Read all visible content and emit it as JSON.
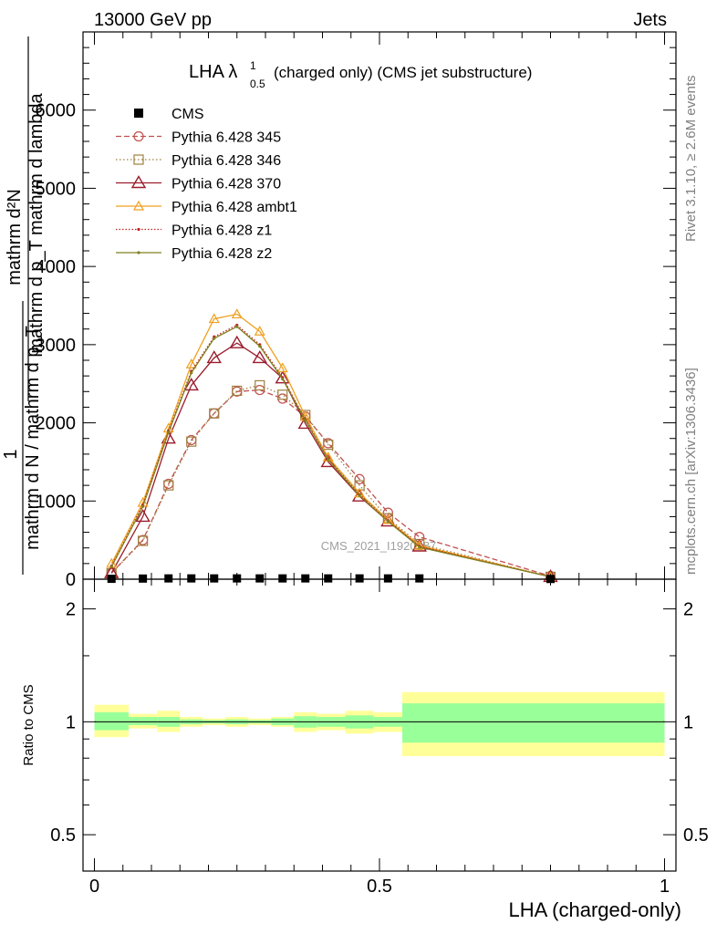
{
  "header": {
    "left": "13000 GeV pp",
    "right": "Jets"
  },
  "title": {
    "prefix": "LHA λ",
    "sup": "1",
    "sub": "0.5",
    "suffix": "(charged only) (CMS jet substructure)"
  },
  "side_labels": {
    "rivet": "Rivet 3.1.10, ≥ 2.6M events",
    "mcplots": "mcplots.cern.ch [arXiv:1306.3436]"
  },
  "watermark": "CMS_2021_I1920187",
  "y_label_top": {
    "numerator": "mathrm d²N",
    "denominator": "mathrm d p_T mathrm d lambda",
    "one": "1",
    "norm_denominator": "mathrm d N / mathrm d p_T"
  },
  "y_label_bottom": "Ratio to CMS",
  "x_label": "LHA (charged-only)",
  "chart_data": [
    {
      "type": "line",
      "panel": "main",
      "x": [
        0.03,
        0.085,
        0.13,
        0.17,
        0.21,
        0.25,
        0.29,
        0.33,
        0.37,
        0.41,
        0.465,
        0.515,
        0.57,
        0.8
      ],
      "x_lim": [
        -0.02,
        1.02
      ],
      "y_lim": [
        0,
        7000
      ],
      "y_ticks": [
        0,
        1000,
        2000,
        3000,
        4000,
        5000,
        6000
      ],
      "y_tick_labels": [
        "0",
        "1000",
        "2000",
        "3000",
        "4000",
        "5000",
        "6000"
      ],
      "x_ticks": [
        0,
        0.5,
        1
      ],
      "x_tick_labels": [
        "0",
        "0.5",
        "1"
      ],
      "cms": {
        "name": "CMS",
        "values": [
          5,
          8,
          10,
          10,
          10,
          10,
          10,
          10,
          10,
          10,
          10,
          10,
          10,
          3
        ]
      },
      "series": [
        {
          "name": "Pythia 6.428 345",
          "color": "#c0504d",
          "dash": "6,3",
          "marker": "circle",
          "values": [
            80,
            500,
            1220,
            1780,
            2120,
            2400,
            2420,
            2310,
            2080,
            1740,
            1280,
            850,
            540,
            40
          ]
        },
        {
          "name": "Pythia 6.428 346",
          "color": "#a08040",
          "dash": "1.5,2.5",
          "marker": "square",
          "values": [
            75,
            490,
            1200,
            1760,
            2120,
            2410,
            2480,
            2360,
            2100,
            1720,
            1200,
            780,
            450,
            30
          ]
        },
        {
          "name": "Pythia 6.428 370",
          "color": "#9b1c2c",
          "dash": "",
          "marker": "triangle-open",
          "values": [
            80,
            800,
            1800,
            2480,
            2830,
            3020,
            2830,
            2570,
            1990,
            1500,
            1060,
            740,
            420,
            30
          ]
        },
        {
          "name": "Pythia 6.428 ambt1",
          "color": "#f0a020",
          "dash": "",
          "marker": "triangle",
          "values": [
            200,
            980,
            1930,
            2750,
            3330,
            3390,
            3170,
            2700,
            2080,
            1560,
            1100,
            760,
            430,
            30
          ]
        },
        {
          "name": "Pythia 6.428 z1",
          "color": "#c02020",
          "dash": "1.5,2",
          "marker": "dot",
          "values": [
            170,
            950,
            1900,
            2660,
            3100,
            3250,
            3000,
            2580,
            2040,
            1540,
            1080,
            750,
            420,
            30
          ]
        },
        {
          "name": "Pythia 6.428 z2",
          "color": "#808020",
          "dash": "",
          "marker": "dot",
          "values": [
            160,
            930,
            1880,
            2640,
            3080,
            3230,
            2980,
            2560,
            2030,
            1530,
            1070,
            740,
            410,
            30
          ]
        }
      ]
    },
    {
      "type": "area",
      "panel": "ratio",
      "x_lim": [
        -0.02,
        1.02
      ],
      "y_scale": "log",
      "y_lim": [
        0.4,
        2.4
      ],
      "y_ticks": [
        0.5,
        1,
        2
      ],
      "y_tick_labels": [
        "0.5",
        "1",
        "2"
      ],
      "bins": [
        {
          "lo": 0.0,
          "hi": 0.06,
          "inner": [
            0.95,
            1.06
          ],
          "outer": [
            0.91,
            1.11
          ]
        },
        {
          "lo": 0.06,
          "hi": 0.11,
          "inner": [
            0.98,
            1.03
          ],
          "outer": [
            0.96,
            1.05
          ]
        },
        {
          "lo": 0.11,
          "hi": 0.15,
          "inner": [
            0.97,
            1.03
          ],
          "outer": [
            0.94,
            1.07
          ]
        },
        {
          "lo": 0.15,
          "hi": 0.19,
          "inner": [
            0.985,
            1.015
          ],
          "outer": [
            0.97,
            1.03
          ]
        },
        {
          "lo": 0.19,
          "hi": 0.23,
          "inner": [
            0.99,
            1.01
          ],
          "outer": [
            0.98,
            1.02
          ]
        },
        {
          "lo": 0.23,
          "hi": 0.27,
          "inner": [
            0.985,
            1.015
          ],
          "outer": [
            0.97,
            1.03
          ]
        },
        {
          "lo": 0.27,
          "hi": 0.31,
          "inner": [
            0.99,
            1.01
          ],
          "outer": [
            0.98,
            1.02
          ]
        },
        {
          "lo": 0.31,
          "hi": 0.35,
          "inner": [
            0.98,
            1.02
          ],
          "outer": [
            0.97,
            1.03
          ]
        },
        {
          "lo": 0.35,
          "hi": 0.39,
          "inner": [
            0.965,
            1.035
          ],
          "outer": [
            0.94,
            1.06
          ]
        },
        {
          "lo": 0.39,
          "hi": 0.44,
          "inner": [
            0.97,
            1.03
          ],
          "outer": [
            0.95,
            1.05
          ]
        },
        {
          "lo": 0.44,
          "hi": 0.49,
          "inner": [
            0.96,
            1.04
          ],
          "outer": [
            0.93,
            1.07
          ]
        },
        {
          "lo": 0.49,
          "hi": 0.54,
          "inner": [
            0.97,
            1.03
          ],
          "outer": [
            0.94,
            1.06
          ]
        },
        {
          "lo": 0.54,
          "hi": 0.6,
          "inner": [
            0.88,
            1.12
          ],
          "outer": [
            0.81,
            1.2
          ]
        },
        {
          "lo": 0.6,
          "hi": 1.0,
          "inner": [
            0.88,
            1.12
          ],
          "outer": [
            0.81,
            1.2
          ]
        }
      ]
    }
  ]
}
